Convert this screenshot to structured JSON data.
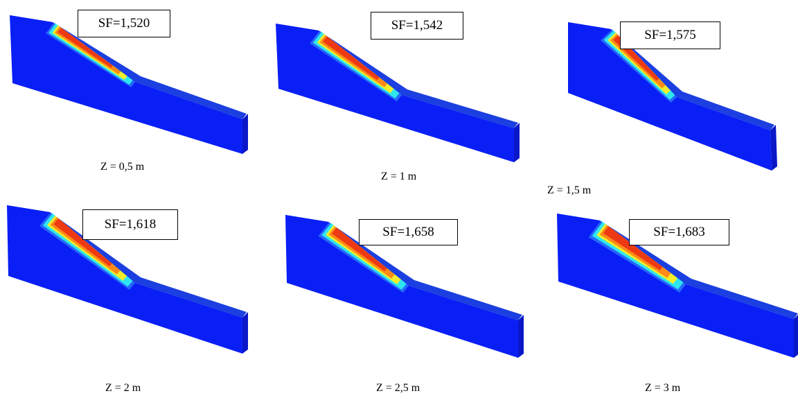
{
  "panels": [
    {
      "id": "p1",
      "sf_label": "SF=1,520",
      "z_label": "Z = 0,5 m",
      "zone": "small"
    },
    {
      "id": "p2",
      "sf_label": "SF=1,542",
      "z_label": "Z = 1 m",
      "zone": "medium"
    },
    {
      "id": "p3",
      "sf_label": "SF=1,575",
      "z_label": "Z = 1,5 m",
      "zone": "medium"
    },
    {
      "id": "p4",
      "sf_label": "SF=1,618",
      "z_label": "Z = 2 m",
      "zone": "large"
    },
    {
      "id": "p5",
      "sf_label": "SF=1,658",
      "z_label": "Z = 2,5 m",
      "zone": "large"
    },
    {
      "id": "p6",
      "sf_label": "SF=1,683",
      "z_label": "Z = 3 m",
      "zone": "largest"
    }
  ],
  "colors": {
    "model_front": "#0a1ff5",
    "model_top": "#1b3fe0",
    "model_side": "#0a17c8",
    "zone_outer": "#3aa6ff",
    "zone_cyan": "#2fe6f0",
    "zone_yellow": "#f2ee2a",
    "zone_orange": "#ff8a18",
    "zone_core": "#ee3a12"
  }
}
